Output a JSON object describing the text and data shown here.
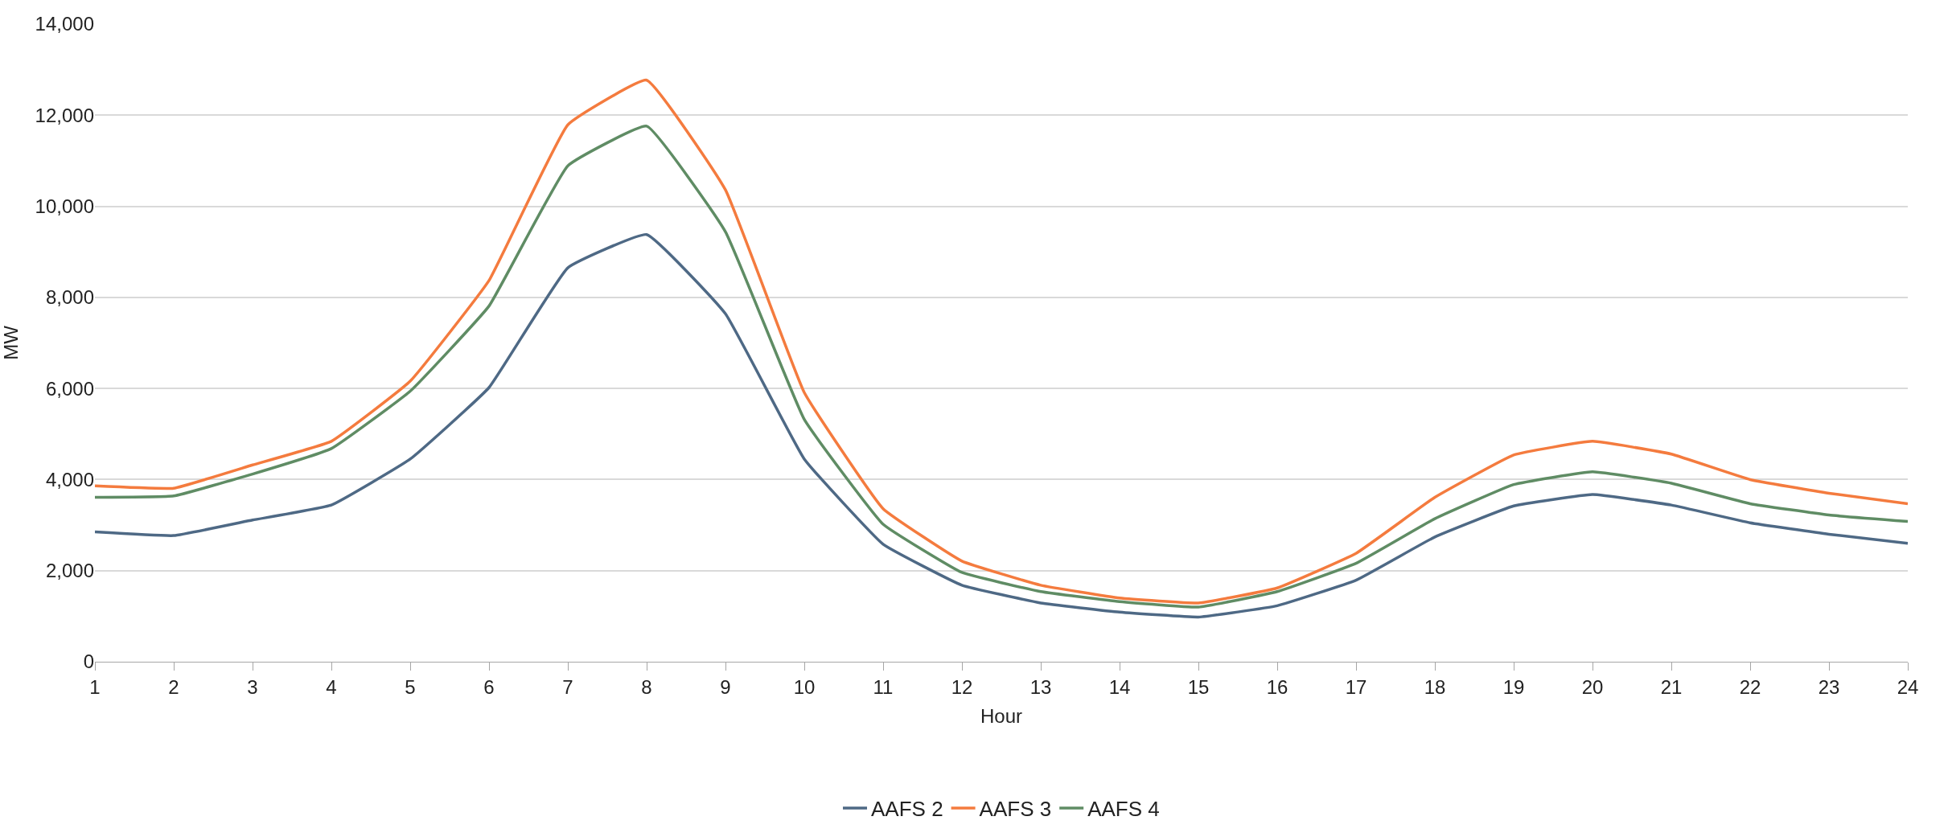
{
  "chart_data": {
    "type": "line",
    "xlabel": "Hour",
    "ylabel": "MW",
    "x": [
      1,
      2,
      3,
      4,
      5,
      6,
      7,
      8,
      9,
      10,
      11,
      12,
      13,
      14,
      15,
      16,
      17,
      18,
      19,
      20,
      21,
      22,
      23,
      24
    ],
    "series": [
      {
        "name": "AAFS 2",
        "color": "#4e6985",
        "values": [
          2850,
          2770,
          3110,
          3440,
          4450,
          6020,
          8650,
          9380,
          7640,
          4450,
          2580,
          1680,
          1290,
          1090,
          980,
          1230,
          1790,
          2740,
          3420,
          3670,
          3440,
          3050,
          2800,
          2600
        ]
      },
      {
        "name": "AAFS 3",
        "color": "#f47b3e",
        "values": [
          3860,
          3810,
          4320,
          4840,
          6160,
          8370,
          11790,
          12770,
          10360,
          5910,
          3360,
          2210,
          1680,
          1400,
          1290,
          1620,
          2380,
          3610,
          4540,
          4840,
          4560,
          4000,
          3700,
          3470
        ]
      },
      {
        "name": "AAFS 4",
        "color": "#5f8c64",
        "values": [
          3610,
          3640,
          4120,
          4680,
          5940,
          7810,
          10890,
          11760,
          9440,
          5320,
          3020,
          1960,
          1540,
          1320,
          1200,
          1540,
          2160,
          3140,
          3890,
          4170,
          3920,
          3470,
          3220,
          3080
        ]
      }
    ],
    "xlim": [
      1,
      24
    ],
    "xticks": [
      1,
      2,
      3,
      4,
      5,
      6,
      7,
      8,
      9,
      10,
      11,
      12,
      13,
      14,
      15,
      16,
      17,
      18,
      19,
      20,
      21,
      22,
      23,
      24
    ],
    "ylim": [
      0,
      14000
    ],
    "yticks": [
      {
        "value": 0,
        "label": "0"
      },
      {
        "value": 2000,
        "label": "2,000"
      },
      {
        "value": 4000,
        "label": "4,000"
      },
      {
        "value": 6000,
        "label": "6,000"
      },
      {
        "value": 8000,
        "label": "8,000"
      },
      {
        "value": 10000,
        "label": "10,000"
      },
      {
        "value": 12000,
        "label": "12,000"
      },
      {
        "value": 14000,
        "label": "14,000"
      }
    ],
    "grid": "y",
    "legend": "bottom",
    "marker": "none",
    "line_style": "solid"
  }
}
